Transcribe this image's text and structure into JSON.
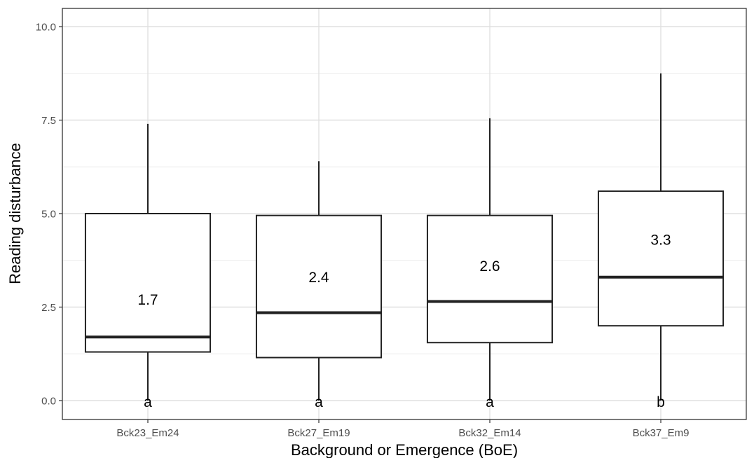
{
  "chart_data": {
    "type": "box",
    "xlabel": "Background or Emergence (BoE)",
    "ylabel": "Reading disturbance",
    "ylim": [
      -0.5,
      10.5
    ],
    "yticks": [
      "0.0",
      "2.5",
      "5.0",
      "7.5",
      "10.0"
    ],
    "ytick_values": [
      0,
      2.5,
      5,
      7.5,
      10
    ],
    "grid": true,
    "categories": [
      "Bck23_Em24",
      "Bck27_Em19",
      "Bck32_Em14",
      "Bck37_Em9"
    ],
    "boxes": [
      {
        "min": 0,
        "q1": 1.3,
        "median": 1.7,
        "q3": 5.0,
        "max": 7.4,
        "median_label": "1.7",
        "median_label_y": 2.7,
        "letter": "a"
      },
      {
        "min": 0,
        "q1": 1.15,
        "median": 2.35,
        "q3": 4.95,
        "max": 6.4,
        "median_label": "2.4",
        "median_label_y": 3.3,
        "letter": "a"
      },
      {
        "min": 0,
        "q1": 1.55,
        "median": 2.65,
        "q3": 4.95,
        "max": 7.55,
        "median_label": "2.6",
        "median_label_y": 3.6,
        "letter": "a"
      },
      {
        "min": 0,
        "q1": 2.0,
        "median": 3.3,
        "q3": 5.6,
        "max": 8.75,
        "median_label": "3.3",
        "median_label_y": 4.3,
        "letter": "b"
      }
    ]
  }
}
